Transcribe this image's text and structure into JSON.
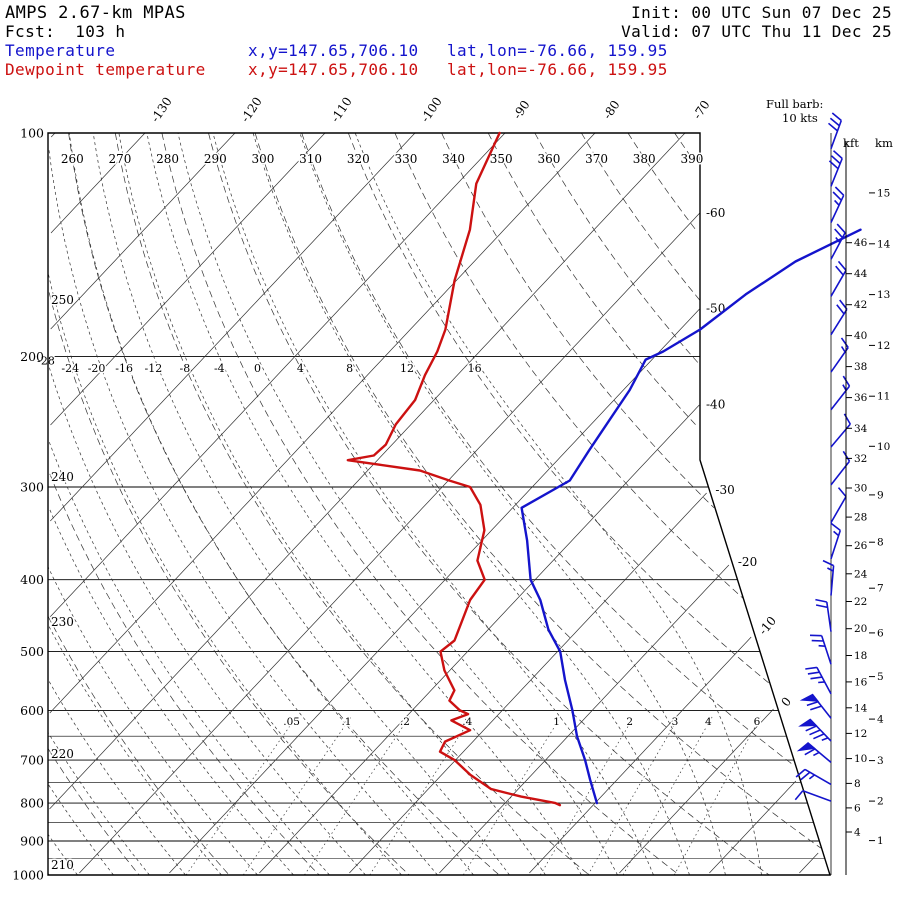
{
  "header": {
    "model": "AMPS 2.67-km MPAS",
    "fcst": "Fcst:  103 h",
    "init": "Init: 00 UTC Sun 07 Dec 25",
    "valid": "Valid: 07 UTC Thu 11 Dec 25",
    "series": [
      {
        "label": "Temperature",
        "xy": "x,y=147.65,706.10",
        "latlon": "lat,lon=-76.66, 159.95",
        "color": "#1414cc"
      },
      {
        "label": "Dewpoint temperature",
        "xy": "x,y=147.65,706.10",
        "latlon": "lat,lon=-76.66, 159.95",
        "color": "#cc1111"
      }
    ]
  },
  "chart_data": {
    "type": "skewt_logp",
    "pressure_axis": {
      "unit": "hPa",
      "major": [
        100,
        200,
        300,
        400,
        500,
        600,
        700,
        800,
        900,
        1000
      ],
      "minor": [
        650,
        750,
        850,
        950
      ]
    },
    "isotherms_C": {
      "min": -140,
      "max": 20,
      "step": 10,
      "top_labels": [
        -130,
        -120,
        -110,
        -100,
        -90,
        -80,
        -70
      ],
      "right_labels": [
        -60,
        -50,
        -40,
        -30,
        -20,
        -10,
        0
      ]
    },
    "dry_adiabats_K": {
      "min": 210,
      "max": 390,
      "step": 10,
      "top_labels": [
        260,
        270,
        280,
        290,
        300,
        310,
        320,
        330,
        340,
        350,
        360,
        370,
        380,
        390
      ],
      "left_labels": [
        250,
        240,
        230,
        220,
        210
      ]
    },
    "moist_adiabats_C": {
      "min": -60,
      "max": 16,
      "step": 4,
      "labels_200hPa": [
        -24,
        -20,
        -16,
        -12,
        -8,
        -4,
        0,
        4,
        8,
        12,
        16
      ],
      "left_label": -28
    },
    "mixing_ratio_gkg": {
      "values": [
        0.05,
        0.1,
        0.2,
        0.4,
        1,
        2,
        3,
        4,
        6
      ],
      "labels": [
        ".05",
        ".1",
        ".2",
        ".4",
        "1",
        "2",
        "3",
        "4",
        "6"
      ]
    },
    "temperature_profile": {
      "name": "Temperature",
      "color": "#1414cc",
      "points_p_T": [
        [
          135,
          -40.4
        ],
        [
          149,
          -44.3
        ],
        [
          165,
          -46.4
        ],
        [
          184,
          -47.8
        ],
        [
          197,
          -49.6
        ],
        [
          202,
          -50.7
        ],
        [
          222,
          -49.3
        ],
        [
          244,
          -48.4
        ],
        [
          268,
          -47.5
        ],
        [
          294,
          -46.5
        ],
        [
          320,
          -49.0
        ],
        [
          354,
          -45.0
        ],
        [
          400,
          -40.5
        ],
        [
          426,
          -37.3
        ],
        [
          467,
          -33.3
        ],
        [
          500,
          -29.7
        ],
        [
          546,
          -26.2
        ],
        [
          600,
          -22.2
        ],
        [
          650,
          -19.0
        ],
        [
          700,
          -15.6
        ],
        [
          744,
          -13.0
        ],
        [
          800,
          -9.8
        ]
      ]
    },
    "dewpoint_profile": {
      "name": "Dewpoint temperature",
      "color": "#cc1111",
      "points_p_T": [
        [
          100,
          -90.6
        ],
        [
          117,
          -87.9
        ],
        [
          135,
          -83.8
        ],
        [
          158,
          -80.2
        ],
        [
          184,
          -76.1
        ],
        [
          197,
          -74.7
        ],
        [
          212,
          -73.6
        ],
        [
          229,
          -72.1
        ],
        [
          247,
          -71.7
        ],
        [
          263,
          -70.7
        ],
        [
          272,
          -70.9
        ],
        [
          276,
          -73.3
        ],
        [
          280,
          -69.2
        ],
        [
          285,
          -64.2
        ],
        [
          294,
          -59.9
        ],
        [
          300,
          -56.9
        ],
        [
          317,
          -53.9
        ],
        [
          343,
          -50.8
        ],
        [
          377,
          -48.4
        ],
        [
          400,
          -45.6
        ],
        [
          426,
          -45.1
        ],
        [
          483,
          -42.6
        ],
        [
          500,
          -43.0
        ],
        [
          530,
          -40.6
        ],
        [
          564,
          -37.4
        ],
        [
          582,
          -36.9
        ],
        [
          600,
          -34.7
        ],
        [
          607,
          -33.4
        ],
        [
          619,
          -34.6
        ],
        [
          638,
          -31.5
        ],
        [
          661,
          -33.1
        ],
        [
          682,
          -32.6
        ],
        [
          700,
          -30.1
        ],
        [
          733,
          -26.8
        ],
        [
          766,
          -23.0
        ],
        [
          784,
          -18.9
        ],
        [
          800,
          -14.4
        ],
        [
          805,
          -13.7
        ]
      ]
    },
    "wind_barbs": {
      "color": "#1414cc",
      "full_barb_kts": 10,
      "levels_p_spd_dir": [
        [
          105,
          30,
          20
        ],
        [
          118,
          30,
          22
        ],
        [
          132,
          25,
          25
        ],
        [
          148,
          25,
          28
        ],
        [
          166,
          20,
          30
        ],
        [
          187,
          20,
          32
        ],
        [
          210,
          15,
          35
        ],
        [
          236,
          15,
          38
        ],
        [
          265,
          10,
          40
        ],
        [
          298,
          10,
          38
        ],
        [
          335,
          10,
          30
        ],
        [
          375,
          15,
          18
        ],
        [
          420,
          15,
          5
        ],
        [
          470,
          20,
          352
        ],
        [
          520,
          25,
          342
        ],
        [
          570,
          35,
          332
        ],
        [
          615,
          70,
          322
        ],
        [
          660,
          85,
          316
        ],
        [
          705,
          65,
          310
        ],
        [
          755,
          25,
          300
        ],
        [
          795,
          10,
          290
        ]
      ]
    },
    "height_axes": {
      "kft_label": "kft",
      "km_label": "km",
      "kft_ticks": [
        4,
        6,
        8,
        10,
        12,
        14,
        16,
        18,
        20,
        22,
        24,
        26,
        28,
        30,
        32,
        34,
        36,
        38,
        40,
        42,
        44,
        46
      ],
      "km_ticks": [
        1,
        2,
        3,
        4,
        5,
        6,
        7,
        8,
        9,
        10,
        11,
        12,
        13,
        14,
        15
      ]
    },
    "annotations": {
      "full_barb_line1": "Full barb:",
      "full_barb_line2": "10 kts"
    }
  }
}
